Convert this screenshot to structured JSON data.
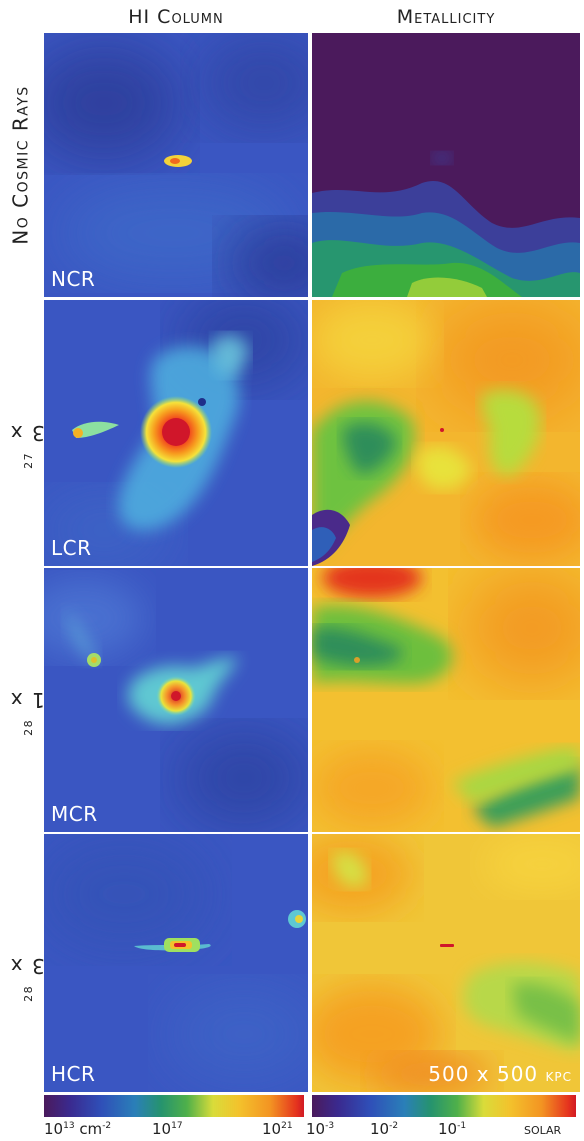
{
  "headers": {
    "left": "HI Column",
    "right": "Metallicity"
  },
  "rows": [
    {
      "label": "No Cosmic Rays",
      "tag": "NCR"
    },
    {
      "label": "3 x 10",
      "exponent": "27",
      "tag": "LCR"
    },
    {
      "label": "1 x 10",
      "exponent": "28",
      "tag": "MCR"
    },
    {
      "label": "3 x 10",
      "exponent": "28",
      "tag": "HCR"
    }
  ],
  "scale_bar": {
    "text": "500 x 500",
    "unit": "kpc"
  },
  "colorbars": {
    "hi": {
      "ticks": [
        {
          "base": "10",
          "exp": "13",
          "suffix": " cm",
          "suffix_exp": "-2"
        },
        {
          "base": "10",
          "exp": "17"
        },
        {
          "base": "10",
          "exp": "21"
        }
      ]
    },
    "metallicity": {
      "ticks": [
        {
          "base": "10",
          "exp": "-3"
        },
        {
          "base": "10",
          "exp": "-2"
        },
        {
          "base": "10",
          "exp": "-1"
        },
        {
          "base": "solar",
          "exp": ""
        }
      ]
    }
  },
  "colors": {
    "bg_blue": "#3a55bf",
    "metal_dark": "#4a1a5a",
    "metal_hot": "#f5a81e"
  }
}
